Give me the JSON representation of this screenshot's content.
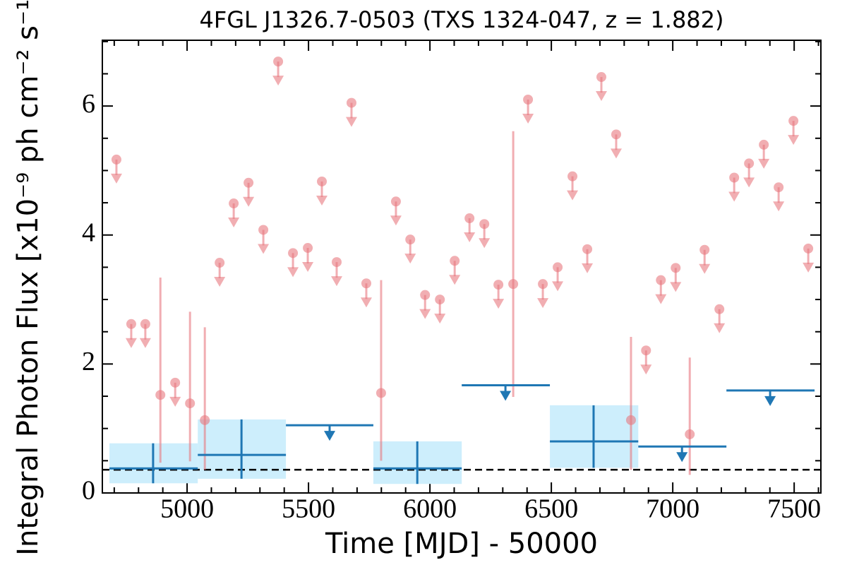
{
  "chart_data": {
    "type": "lightcurve",
    "title": "4FGL J1326.7-0503 (TXS 1324-047, z = 1.882)",
    "x_label": "Time [MJD] - 50000",
    "y_label": "Integral Photon Flux [x10⁻⁹ ph cm⁻² s⁻¹]",
    "xlim": [
      4651,
      7610
    ],
    "ylim": [
      0,
      7.02
    ],
    "xticks": [
      5000,
      5500,
      6000,
      6500,
      7000,
      7500
    ],
    "yticks": [
      0,
      2,
      4,
      6
    ],
    "xminorticks": [
      4700,
      4800,
      4900,
      5100,
      5200,
      5300,
      5400,
      5600,
      5700,
      5800,
      5900,
      6100,
      6200,
      6300,
      6400,
      6600,
      6700,
      6800,
      6900,
      7100,
      7200,
      7300,
      7400,
      7600
    ],
    "yminorticks": [
      0.5,
      1,
      1.5,
      2.5,
      3,
      3.5,
      4.5,
      5,
      5.5,
      6.5,
      7
    ],
    "hline": 0.36,
    "series": [
      {
        "color": "#e8787f",
        "x": [
          4709,
          4770,
          4828,
          4890,
          4951,
          5012,
          5073,
          5134,
          5192,
          5253,
          5314,
          5375,
          5436,
          5497,
          5555,
          5616,
          5677,
          5738,
          5799,
          5860,
          5919,
          5980,
          6041,
          6102,
          6163,
          6224,
          6282,
          6343,
          6404,
          6465,
          6526,
          6587,
          6648,
          6706,
          6767,
          6828,
          6890,
          6951,
          7012,
          7070,
          7131,
          7192,
          7253,
          7314,
          7375,
          7436,
          7497,
          7558
        ],
        "values": [
          5.17,
          2.62,
          2.62,
          1.52,
          1.71,
          1.39,
          1.13,
          3.57,
          4.49,
          4.81,
          4.08,
          6.69,
          3.72,
          3.8,
          4.83,
          3.58,
          6.05,
          3.25,
          1.55,
          4.52,
          3.93,
          3.07,
          3.0,
          3.6,
          4.26,
          4.17,
          3.23,
          3.24,
          6.1,
          3.24,
          3.5,
          4.91,
          3.78,
          6.45,
          5.56,
          1.13,
          2.21,
          3.3,
          3.49,
          0.91,
          3.77,
          2.85,
          4.89,
          5.11,
          5.4,
          4.74,
          5.77,
          3.79
        ],
        "lower": [
          null,
          null,
          null,
          0.47,
          null,
          0.49,
          0.36,
          null,
          null,
          null,
          null,
          null,
          null,
          null,
          null,
          null,
          null,
          null,
          0.5,
          null,
          null,
          null,
          null,
          null,
          null,
          null,
          null,
          1.49,
          null,
          null,
          null,
          null,
          null,
          null,
          null,
          0.36,
          null,
          null,
          null,
          0.28,
          null,
          null,
          null,
          null,
          null,
          null,
          null,
          null
        ],
        "upper": [
          null,
          null,
          null,
          3.34,
          null,
          2.81,
          2.57,
          null,
          null,
          null,
          null,
          null,
          null,
          null,
          null,
          null,
          null,
          null,
          3.3,
          null,
          null,
          null,
          null,
          null,
          null,
          null,
          null,
          5.61,
          null,
          null,
          null,
          null,
          null,
          null,
          null,
          2.42,
          null,
          null,
          null,
          2.1,
          null,
          null,
          null,
          null,
          null,
          null,
          null,
          null
        ]
      },
      {
        "color": "#1f77b4",
        "band_color": "#cdeefc",
        "x": [
          4860,
          5224,
          5587,
          5948,
          6311,
          6674,
          7038,
          7401
        ],
        "x_low": [
          4680,
          5044,
          5407,
          5767,
          6131,
          6494,
          6858,
          7221
        ],
        "x_high": [
          5044,
          5407,
          5767,
          6131,
          6494,
          6858,
          7221,
          7584
        ],
        "values": [
          0.38,
          0.59,
          1.05,
          0.38,
          1.67,
          0.8,
          0.72,
          1.59
        ],
        "lower": [
          0.15,
          0.22,
          null,
          0.14,
          null,
          0.39,
          null,
          null
        ],
        "upper": [
          0.77,
          1.14,
          null,
          0.8,
          null,
          1.36,
          null,
          null
        ]
      }
    ]
  }
}
